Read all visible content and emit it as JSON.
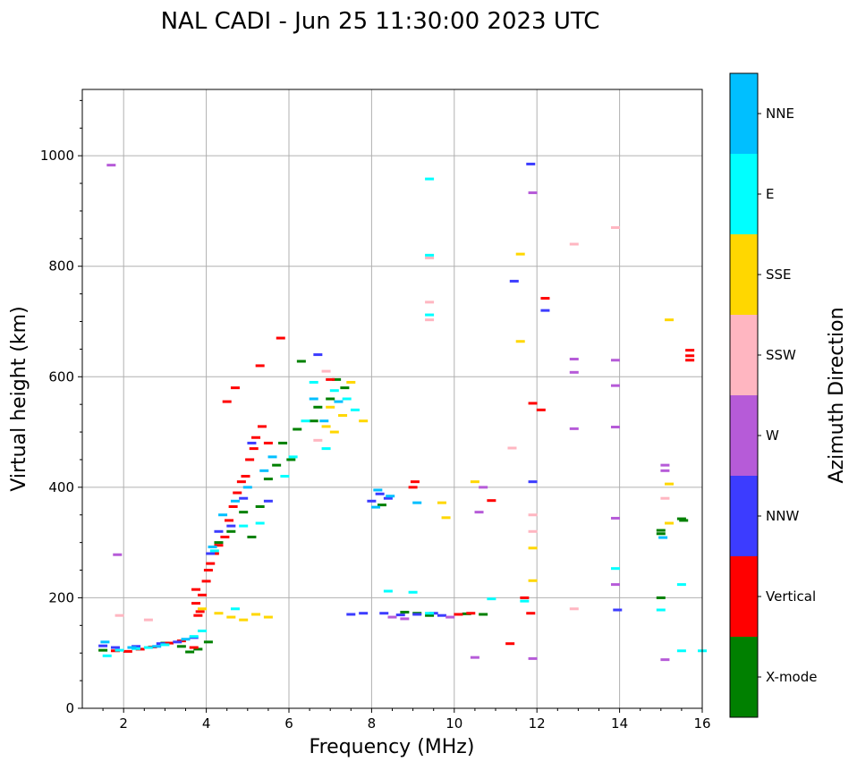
{
  "chart_data": {
    "type": "scatter",
    "title": "NAL CADI - Jun 25 11:30:00 2023 UTC",
    "xlabel": "Frequency (MHz)",
    "ylabel": "Virtual height (km)",
    "xlim": [
      1,
      16
    ],
    "ylim": [
      0,
      1120
    ],
    "xticks": [
      2,
      4,
      6,
      8,
      10,
      12,
      14,
      16
    ],
    "yticks": [
      0,
      200,
      400,
      600,
      800,
      1000
    ],
    "grid": true,
    "colorbar": {
      "label": "Azimuth Direction",
      "categories": [
        {
          "name": "X-mode",
          "color": "#008000"
        },
        {
          "name": "Vertical",
          "color": "#ff0000"
        },
        {
          "name": "NNW",
          "color": "#3c3cff"
        },
        {
          "name": "W",
          "color": "#b65bd8"
        },
        {
          "name": "SSW",
          "color": "#ffb6c1"
        },
        {
          "name": "SSE",
          "color": "#ffd700"
        },
        {
          "name": "E",
          "color": "#00ffff"
        },
        {
          "name": "NNE",
          "color": "#00bfff"
        }
      ]
    },
    "series": [
      {
        "name": "X-mode",
        "points": [
          [
            1.5,
            105
          ],
          [
            3.0,
            118
          ],
          [
            3.4,
            112
          ],
          [
            3.6,
            102
          ],
          [
            3.8,
            107
          ],
          [
            4.05,
            120
          ],
          [
            4.3,
            300
          ],
          [
            4.6,
            320
          ],
          [
            4.9,
            355
          ],
          [
            5.1,
            310
          ],
          [
            5.3,
            365
          ],
          [
            5.5,
            415
          ],
          [
            5.7,
            440
          ],
          [
            5.85,
            480
          ],
          [
            6.05,
            450
          ],
          [
            6.2,
            505
          ],
          [
            6.3,
            628
          ],
          [
            6.6,
            520
          ],
          [
            6.7,
            545
          ],
          [
            7.0,
            560
          ],
          [
            7.15,
            595
          ],
          [
            7.35,
            580
          ],
          [
            8.25,
            368
          ],
          [
            8.8,
            174
          ],
          [
            9.1,
            172
          ],
          [
            9.4,
            168
          ],
          [
            10.3,
            171
          ],
          [
            10.7,
            170
          ],
          [
            15.0,
            200
          ],
          [
            15.0,
            322
          ],
          [
            15.0,
            316
          ],
          [
            15.5,
            343
          ],
          [
            15.55,
            340
          ]
        ]
      },
      {
        "name": "Vertical",
        "points": [
          [
            1.8,
            104
          ],
          [
            2.1,
            103
          ],
          [
            2.4,
            107
          ],
          [
            2.7,
            111
          ],
          [
            3.1,
            118
          ],
          [
            3.4,
            122
          ],
          [
            3.7,
            110
          ],
          [
            3.75,
            190
          ],
          [
            3.75,
            215
          ],
          [
            3.8,
            168
          ],
          [
            3.85,
            175
          ],
          [
            3.9,
            205
          ],
          [
            4.0,
            230
          ],
          [
            4.05,
            250
          ],
          [
            4.1,
            262
          ],
          [
            4.2,
            280
          ],
          [
            4.3,
            295
          ],
          [
            4.45,
            310
          ],
          [
            4.55,
            340
          ],
          [
            4.65,
            365
          ],
          [
            4.75,
            390
          ],
          [
            4.85,
            410
          ],
          [
            4.95,
            420
          ],
          [
            5.05,
            450
          ],
          [
            5.15,
            470
          ],
          [
            5.2,
            490
          ],
          [
            5.35,
            510
          ],
          [
            5.5,
            480
          ],
          [
            4.5,
            555
          ],
          [
            4.7,
            580
          ],
          [
            5.3,
            620
          ],
          [
            5.8,
            670
          ],
          [
            7.0,
            595
          ],
          [
            9.0,
            400
          ],
          [
            9.05,
            410
          ],
          [
            10.1,
            170
          ],
          [
            10.4,
            172
          ],
          [
            10.9,
            376
          ],
          [
            11.35,
            117
          ],
          [
            11.7,
            200
          ],
          [
            11.85,
            172
          ],
          [
            11.9,
            552
          ],
          [
            12.1,
            540
          ],
          [
            12.2,
            742
          ],
          [
            15.7,
            638
          ],
          [
            15.7,
            648
          ],
          [
            15.7,
            630
          ]
        ]
      },
      {
        "name": "NNW",
        "points": [
          [
            1.5,
            113
          ],
          [
            1.8,
            110
          ],
          [
            2.3,
            112
          ],
          [
            2.9,
            117
          ],
          [
            3.3,
            120
          ],
          [
            3.7,
            128
          ],
          [
            4.1,
            280
          ],
          [
            4.3,
            320
          ],
          [
            4.6,
            330
          ],
          [
            4.9,
            380
          ],
          [
            5.1,
            480
          ],
          [
            5.5,
            375
          ],
          [
            6.7,
            640
          ],
          [
            8.0,
            375
          ],
          [
            8.2,
            388
          ],
          [
            8.4,
            380
          ],
          [
            7.5,
            170
          ],
          [
            7.8,
            172
          ],
          [
            8.3,
            172
          ],
          [
            8.7,
            169
          ],
          [
            9.1,
            170
          ],
          [
            9.5,
            172
          ],
          [
            9.7,
            168
          ],
          [
            11.45,
            773
          ],
          [
            11.9,
            410
          ],
          [
            11.85,
            985
          ],
          [
            12.2,
            720
          ],
          [
            13.95,
            178
          ]
        ]
      },
      {
        "name": "W",
        "points": [
          [
            1.7,
            983
          ],
          [
            1.85,
            278
          ],
          [
            8.5,
            165
          ],
          [
            8.8,
            162
          ],
          [
            9.9,
            165
          ],
          [
            10.5,
            92
          ],
          [
            10.6,
            355
          ],
          [
            10.7,
            400
          ],
          [
            11.9,
            933
          ],
          [
            11.9,
            90
          ],
          [
            12.9,
            632
          ],
          [
            12.9,
            608
          ],
          [
            12.9,
            506
          ],
          [
            13.9,
            630
          ],
          [
            13.9,
            584
          ],
          [
            13.9,
            509
          ],
          [
            13.9,
            344
          ],
          [
            13.9,
            224
          ],
          [
            15.1,
            440
          ],
          [
            15.1,
            430
          ],
          [
            15.1,
            88
          ]
        ]
      },
      {
        "name": "SSW",
        "points": [
          [
            1.9,
            168
          ],
          [
            2.6,
            160
          ],
          [
            6.7,
            485
          ],
          [
            6.9,
            610
          ],
          [
            9.4,
            735
          ],
          [
            9.4,
            703
          ],
          [
            9.4,
            815
          ],
          [
            11.4,
            471
          ],
          [
            11.9,
            350
          ],
          [
            11.9,
            320
          ],
          [
            12.9,
            840
          ],
          [
            12.9,
            180
          ],
          [
            13.9,
            870
          ],
          [
            15.1,
            380
          ]
        ]
      },
      {
        "name": "SSE",
        "points": [
          [
            3.9,
            180
          ],
          [
            4.3,
            172
          ],
          [
            4.6,
            165
          ],
          [
            4.9,
            160
          ],
          [
            5.2,
            170
          ],
          [
            5.5,
            165
          ],
          [
            6.9,
            510
          ],
          [
            7.0,
            545
          ],
          [
            7.1,
            500
          ],
          [
            7.3,
            530
          ],
          [
            7.5,
            590
          ],
          [
            7.8,
            520
          ],
          [
            9.8,
            345
          ],
          [
            9.7,
            372
          ],
          [
            10.5,
            410
          ],
          [
            11.6,
            822
          ],
          [
            11.6,
            664
          ],
          [
            11.9,
            290
          ],
          [
            11.9,
            231
          ],
          [
            15.2,
            406
          ],
          [
            15.2,
            335
          ],
          [
            15.2,
            703
          ]
        ]
      },
      {
        "name": "E",
        "points": [
          [
            1.6,
            95
          ],
          [
            1.9,
            105
          ],
          [
            2.3,
            108
          ],
          [
            2.6,
            110
          ],
          [
            3.0,
            115
          ],
          [
            3.7,
            130
          ],
          [
            3.9,
            140
          ],
          [
            4.2,
            285
          ],
          [
            4.7,
            180
          ],
          [
            4.9,
            330
          ],
          [
            5.3,
            335
          ],
          [
            5.9,
            420
          ],
          [
            6.1,
            455
          ],
          [
            6.4,
            520
          ],
          [
            6.6,
            590
          ],
          [
            6.9,
            470
          ],
          [
            7.1,
            575
          ],
          [
            7.4,
            560
          ],
          [
            7.6,
            540
          ],
          [
            8.4,
            212
          ],
          [
            9.0,
            210
          ],
          [
            9.4,
            820
          ],
          [
            9.4,
            958
          ],
          [
            9.4,
            712
          ],
          [
            9.4,
            172
          ],
          [
            10.9,
            198
          ],
          [
            11.7,
            194
          ],
          [
            13.9,
            253
          ],
          [
            15.0,
            178
          ],
          [
            15.5,
            224
          ],
          [
            15.5,
            104
          ],
          [
            16.0,
            104
          ]
        ]
      },
      {
        "name": "NNE",
        "points": [
          [
            1.55,
            120
          ],
          [
            2.2,
            110
          ],
          [
            2.8,
            112
          ],
          [
            3.5,
            125
          ],
          [
            4.15,
            292
          ],
          [
            4.4,
            350
          ],
          [
            4.7,
            375
          ],
          [
            5.0,
            400
          ],
          [
            5.4,
            430
          ],
          [
            5.6,
            455
          ],
          [
            6.6,
            560
          ],
          [
            6.85,
            520
          ],
          [
            7.2,
            555
          ],
          [
            8.15,
            395
          ],
          [
            8.45,
            384
          ],
          [
            8.1,
            364
          ],
          [
            9.1,
            372
          ],
          [
            15.05,
            309
          ]
        ]
      }
    ]
  }
}
